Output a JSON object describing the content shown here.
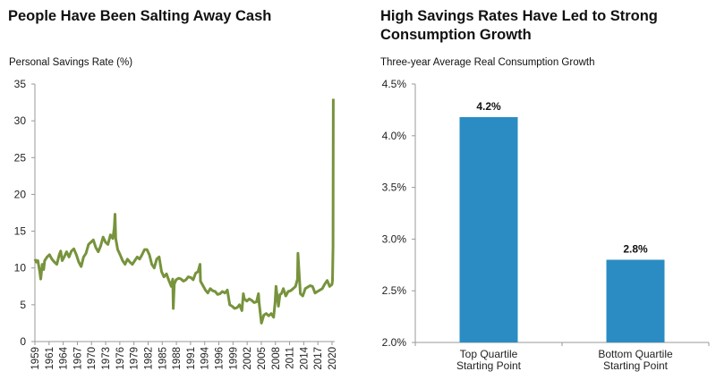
{
  "chart_data": [
    {
      "type": "line",
      "title": "People Have Been Salting Away Cash",
      "ylabel": "Personal Savings Rate (%)",
      "xlabel": "",
      "ylim": [
        0,
        35
      ],
      "yticks": [
        0,
        5,
        10,
        15,
        20,
        25,
        30,
        35
      ],
      "xlim": [
        1959,
        2020
      ],
      "xtick_labels": [
        "1959",
        "1961",
        "1964",
        "1967",
        "1970",
        "1973",
        "1976",
        "1979",
        "1982",
        "1985",
        "1988",
        "1991",
        "1994",
        "1996",
        "1999",
        "2002",
        "2005",
        "2008",
        "2011",
        "2014",
        "2017",
        "2020"
      ],
      "grid": false,
      "color": "#77933C",
      "series": [
        {
          "x": [
            1959,
            1959.3,
            1959.6,
            1960,
            1960.2,
            1960.5,
            1960.8,
            1961,
            1961.5,
            1962,
            1962.5,
            1963,
            1963.5,
            1964,
            1964.3,
            1964.6,
            1965,
            1965.5,
            1966,
            1966.5,
            1967,
            1967.5,
            1968,
            1968.5,
            1969,
            1969.5,
            1970,
            1970.5,
            1971,
            1971.5,
            1972,
            1972.5,
            1973,
            1973.5,
            1974,
            1974.5,
            1975,
            1975.3,
            1975.45,
            1975.6,
            1976,
            1976.5,
            1977,
            1977.5,
            1978,
            1978.5,
            1979,
            1979.5,
            1980,
            1980.5,
            1981,
            1981.5,
            1982,
            1982.5,
            1983,
            1983.5,
            1984,
            1984.5,
            1985,
            1985.5,
            1986,
            1986.5,
            1987,
            1987.3,
            1987.4,
            1987.6,
            1988,
            1988.5,
            1989,
            1989.5,
            1990,
            1990.5,
            1991,
            1991.5,
            1992,
            1992.5,
            1992.9,
            1993,
            1993.5,
            1994,
            1994.5,
            1995,
            1995.5,
            1996,
            1996.5,
            1997,
            1997.5,
            1998,
            1998.5,
            1999,
            1999.5,
            2000,
            2000.5,
            2001,
            2001.5,
            2001.8,
            2002,
            2002.5,
            2003,
            2003.5,
            2004,
            2004.5,
            2004.9,
            2005,
            2005.5,
            2006,
            2006.5,
            2007,
            2007.5,
            2008,
            2008.3,
            2008.5,
            2009,
            2009.3,
            2009.6,
            2010,
            2010.5,
            2011,
            2011.5,
            2012,
            2012.5,
            2012.9,
            2013,
            2013.5,
            2014,
            2014.5,
            2015,
            2015.5,
            2016,
            2016.5,
            2017,
            2017.5,
            2018,
            2018.5,
            2019,
            2019.5,
            2019.9,
            2020,
            2020.1,
            2020.2,
            2020.25
          ],
          "y": [
            11.2,
            10.8,
            11,
            9.5,
            8.5,
            10.5,
            9.8,
            11,
            11.5,
            11.8,
            11.2,
            10.8,
            10.5,
            11.8,
            12.3,
            11,
            11.5,
            12.2,
            11.5,
            12.3,
            12.6,
            11.8,
            10.8,
            10.2,
            11.5,
            12,
            13.2,
            13.5,
            13.8,
            12.8,
            12.2,
            13,
            14.2,
            13.5,
            13.2,
            14.5,
            14,
            15.5,
            17.3,
            14,
            12.5,
            11.8,
            11,
            10.5,
            11.2,
            10.8,
            10.5,
            11,
            11.5,
            11.2,
            11.8,
            12.5,
            12.5,
            11.8,
            10.5,
            10,
            11.2,
            11.5,
            9.5,
            8.8,
            9.2,
            8.3,
            7.5,
            8.5,
            4.5,
            7.8,
            8.4,
            8.6,
            8.5,
            8.2,
            8.4,
            8.8,
            8.7,
            8.4,
            9.3,
            9.5,
            10.5,
            8.2,
            7.6,
            7,
            6.6,
            7.2,
            6.9,
            6.8,
            6.4,
            6.5,
            6.8,
            6.6,
            7,
            5,
            4.8,
            4.5,
            4.6,
            5,
            4.2,
            6.5,
            5.8,
            5.5,
            5.8,
            5.6,
            5.3,
            5.4,
            6.5,
            5.4,
            2.5,
            3.6,
            3.8,
            3.5,
            3.8,
            3.3,
            5.2,
            7.5,
            4.8,
            6.4,
            6.5,
            7.2,
            6.2,
            6.8,
            6.9,
            7.2,
            7.5,
            8.5,
            12,
            6.5,
            6.2,
            7.2,
            7.4,
            7.6,
            7.5,
            6.6,
            6.8,
            7.0,
            7.2,
            7.8,
            8.3,
            7.5,
            7.7,
            7.8,
            8.3,
            12.9,
            33
          ]
        }
      ]
    },
    {
      "type": "bar",
      "title": "High Savings Rates Have Led to Strong Consumption Growth",
      "ylabel": "Three-year Average Real Consumption Growth",
      "xlabel": "",
      "ylim": [
        2.0,
        4.5
      ],
      "ytick_labels": [
        "2.0%",
        "2.5%",
        "3.0%",
        "3.5%",
        "4.0%",
        "4.5%"
      ],
      "yticks": [
        2.0,
        2.5,
        3.0,
        3.5,
        4.0,
        4.5
      ],
      "grid": false,
      "color": "#2B8CC4",
      "categories": [
        "Top Quartile|Starting Point",
        "Bottom Quartile|Starting Point"
      ],
      "values": [
        4.18,
        2.8
      ],
      "data_labels": [
        "4.2%",
        "2.8%"
      ]
    }
  ]
}
